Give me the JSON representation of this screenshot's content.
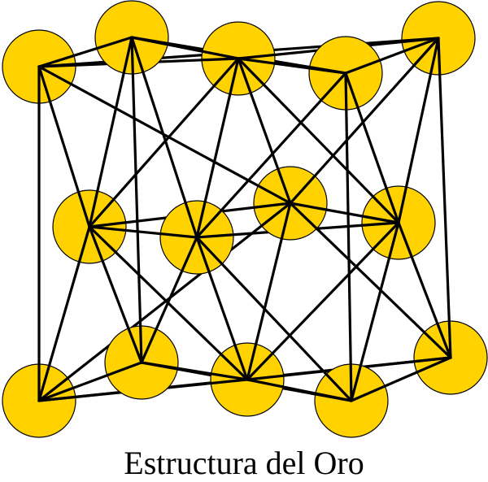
{
  "caption": "Estructura del Oro",
  "structure": {
    "type": "face-centered-cubic",
    "element": "gold",
    "atom_count": 14,
    "corner_atoms": 8,
    "face_center_atoms": 6
  },
  "colors": {
    "atom_fill": "#FFD200",
    "atom_stroke": "#000000",
    "bond": "#000000",
    "background": "#FFFFFF"
  }
}
